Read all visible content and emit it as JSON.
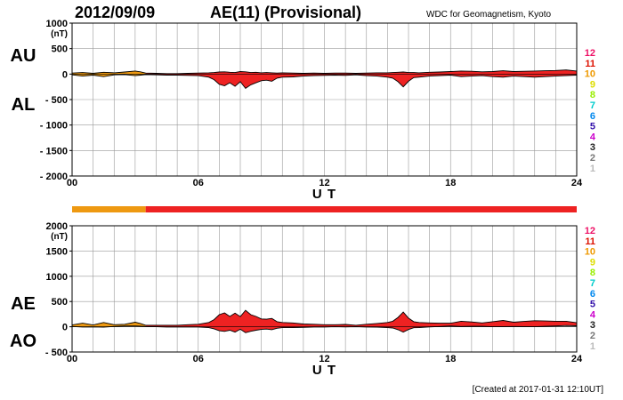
{
  "header": {
    "date": "2012/09/09",
    "title": "AE(11) (Provisional)",
    "source": "WDC for Geomagnetism, Kyoto"
  },
  "footer": {
    "created": "[Created at 2017-01-31 12:10UT]"
  },
  "colors": {
    "upper_fill": "#ee2222",
    "early_fill": "#ee9911",
    "grid": "#999999"
  },
  "station_scale": [
    {
      "label": "12",
      "color": "#ee1166"
    },
    {
      "label": "11",
      "color": "#dd1100"
    },
    {
      "label": "10",
      "color": "#ee9900"
    },
    {
      "label": "9",
      "color": "#dddd00"
    },
    {
      "label": "8",
      "color": "#99ee00"
    },
    {
      "label": "7",
      "color": "#00cccc"
    },
    {
      "label": "6",
      "color": "#0088ee"
    },
    {
      "label": "5",
      "color": "#3311aa"
    },
    {
      "label": "4",
      "color": "#cc00cc"
    },
    {
      "label": "3",
      "color": "#222222"
    },
    {
      "label": "2",
      "color": "#777777"
    },
    {
      "label": "1",
      "color": "#bbbbbb"
    }
  ],
  "station_bar": {
    "segments": [
      {
        "from_hour": 0,
        "to_hour": 3.5,
        "color": "#ee9911"
      },
      {
        "from_hour": 3.5,
        "to_hour": 24,
        "color": "#ee2222"
      }
    ]
  },
  "chart_data": [
    {
      "type": "area",
      "series_labels": {
        "upper": "AU",
        "lower": "AL"
      },
      "unit": "(nT)",
      "xlabel": "U T",
      "xlim": [
        0,
        24
      ],
      "ylim": [
        -2000,
        1000
      ],
      "xticks": [
        0,
        6,
        12,
        18,
        24
      ],
      "xtick_labels": [
        "00",
        "06",
        "12",
        "18",
        "24"
      ],
      "yticks": [
        1000,
        500,
        0,
        -500,
        -1000,
        -1500,
        -2000
      ],
      "ytick_labels": [
        "1000",
        "500",
        "0",
        "- 500",
        "- 1000",
        "- 1500",
        "- 2000"
      ],
      "grid": true,
      "x": [
        0,
        0.5,
        1,
        1.5,
        2,
        2.5,
        3,
        3.25,
        3.5,
        4,
        4.5,
        5,
        5.5,
        6,
        6.5,
        6.75,
        7,
        7.25,
        7.5,
        7.75,
        8,
        8.25,
        8.5,
        8.75,
        9,
        9.25,
        9.5,
        9.75,
        10,
        10.5,
        11,
        11.5,
        12,
        12.5,
        13,
        13.5,
        14,
        14.5,
        15,
        15.25,
        15.5,
        15.75,
        16,
        16.25,
        16.5,
        17,
        17.5,
        18,
        18.5,
        19,
        19.5,
        20,
        20.5,
        21,
        21.5,
        22,
        22.5,
        23,
        23.5,
        24
      ],
      "upper": [
        20,
        30,
        15,
        35,
        25,
        40,
        60,
        45,
        20,
        15,
        10,
        10,
        15,
        20,
        25,
        30,
        40,
        45,
        35,
        30,
        50,
        45,
        30,
        35,
        25,
        30,
        25,
        20,
        25,
        20,
        15,
        20,
        15,
        20,
        20,
        15,
        20,
        25,
        25,
        30,
        35,
        40,
        30,
        30,
        25,
        35,
        40,
        50,
        60,
        55,
        45,
        50,
        65,
        50,
        55,
        60,
        65,
        70,
        80,
        60
      ],
      "lower": [
        -15,
        -40,
        -20,
        -50,
        -15,
        -10,
        -30,
        -20,
        -10,
        -15,
        -20,
        -20,
        -25,
        -30,
        -60,
        -110,
        -200,
        -230,
        -170,
        -240,
        -150,
        -280,
        -210,
        -170,
        -130,
        -120,
        -140,
        -80,
        -60,
        -55,
        -40,
        -30,
        -25,
        -20,
        -25,
        -15,
        -30,
        -40,
        -60,
        -80,
        -150,
        -250,
        -140,
        -70,
        -60,
        -40,
        -30,
        -20,
        -50,
        -40,
        -30,
        -50,
        -60,
        -40,
        -50,
        -60,
        -50,
        -40,
        -30,
        -20
      ]
    },
    {
      "type": "area",
      "series_labels": {
        "upper": "AE",
        "lower": "AO"
      },
      "unit": "(nT)",
      "xlabel": "U T",
      "xlim": [
        0,
        24
      ],
      "ylim": [
        -500,
        2000
      ],
      "xticks": [
        0,
        6,
        12,
        18,
        24
      ],
      "xtick_labels": [
        "00",
        "06",
        "12",
        "18",
        "24"
      ],
      "yticks": [
        2000,
        1500,
        1000,
        500,
        0,
        -500
      ],
      "ytick_labels": [
        "2000",
        "1500",
        "1000",
        "500",
        "0",
        "- 500"
      ],
      "grid": true,
      "x": [
        0,
        0.5,
        1,
        1.5,
        2,
        2.5,
        3,
        3.25,
        3.5,
        4,
        4.5,
        5,
        5.5,
        6,
        6.5,
        6.75,
        7,
        7.25,
        7.5,
        7.75,
        8,
        8.25,
        8.5,
        8.75,
        9,
        9.25,
        9.5,
        9.75,
        10,
        10.5,
        11,
        11.5,
        12,
        12.5,
        13,
        13.5,
        14,
        14.5,
        15,
        15.25,
        15.5,
        15.75,
        16,
        16.25,
        16.5,
        17,
        17.5,
        18,
        18.5,
        19,
        19.5,
        20,
        20.5,
        21,
        21.5,
        22,
        22.5,
        23,
        23.5,
        24
      ],
      "upper": [
        35,
        70,
        35,
        85,
        40,
        50,
        90,
        65,
        30,
        30,
        30,
        30,
        40,
        50,
        85,
        140,
        240,
        275,
        205,
        270,
        200,
        325,
        240,
        205,
        155,
        150,
        165,
        100,
        85,
        75,
        55,
        50,
        40,
        40,
        45,
        30,
        50,
        65,
        85,
        110,
        185,
        290,
        170,
        100,
        85,
        75,
        70,
        70,
        110,
        95,
        75,
        100,
        125,
        90,
        105,
        120,
        115,
        110,
        110,
        80
      ],
      "lower": [
        5,
        -5,
        -3,
        -8,
        5,
        15,
        15,
        12,
        5,
        0,
        -5,
        -5,
        -5,
        -5,
        -18,
        -40,
        -80,
        -92,
        -68,
        -105,
        -50,
        -118,
        -90,
        -68,
        -52,
        -45,
        -58,
        -30,
        -18,
        -18,
        -12,
        -5,
        -5,
        0,
        -3,
        0,
        -5,
        -8,
        -18,
        -25,
        -58,
        -105,
        -55,
        -20,
        -18,
        -3,
        5,
        15,
        5,
        8,
        8,
        0,
        3,
        5,
        3,
        0,
        8,
        15,
        25,
        20
      ]
    }
  ]
}
